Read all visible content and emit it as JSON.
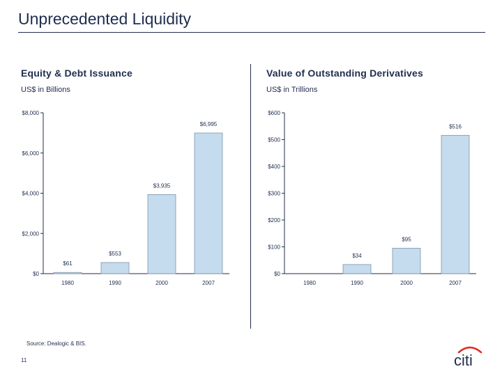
{
  "page": {
    "title": "Unprecedented Liquidity",
    "source": "Source: Dealogic & BIS.",
    "page_number": "11",
    "logo_text": "citi"
  },
  "colors": {
    "bar_fill": "#c5dcee",
    "bar_stroke": "#7f93a8",
    "text": "#1f2d4e",
    "logo_arc": "#e0322b"
  },
  "chart_data": [
    {
      "type": "bar",
      "title": "Equity & Debt Issuance",
      "subtitle": "US$ in Billions",
      "categories": [
        "1980",
        "1990",
        "2000",
        "2007"
      ],
      "values": [
        61,
        553,
        3935,
        6995
      ],
      "data_labels": [
        "$61",
        "$553",
        "$3,935",
        "$6,995"
      ],
      "ylim": [
        0,
        8000
      ],
      "yticks": [
        0,
        2000,
        4000,
        6000,
        8000
      ],
      "ytick_labels": [
        "$0",
        "$2,000",
        "$4,000",
        "$6,000",
        "$8,000"
      ],
      "grid": false
    },
    {
      "type": "bar",
      "title": "Value of Outstanding Derivatives",
      "subtitle": "US$ in Trillions",
      "categories": [
        "1980",
        "1990",
        "2000",
        "2007"
      ],
      "values": [
        0,
        34,
        95,
        516
      ],
      "data_labels": [
        "",
        "$34",
        "$95",
        "$516"
      ],
      "ylim": [
        0,
        600
      ],
      "yticks": [
        0,
        100,
        200,
        300,
        400,
        500,
        600
      ],
      "ytick_labels": [
        "$0",
        "$100",
        "$200",
        "$300",
        "$400",
        "$500",
        "$600"
      ],
      "grid": false
    }
  ]
}
